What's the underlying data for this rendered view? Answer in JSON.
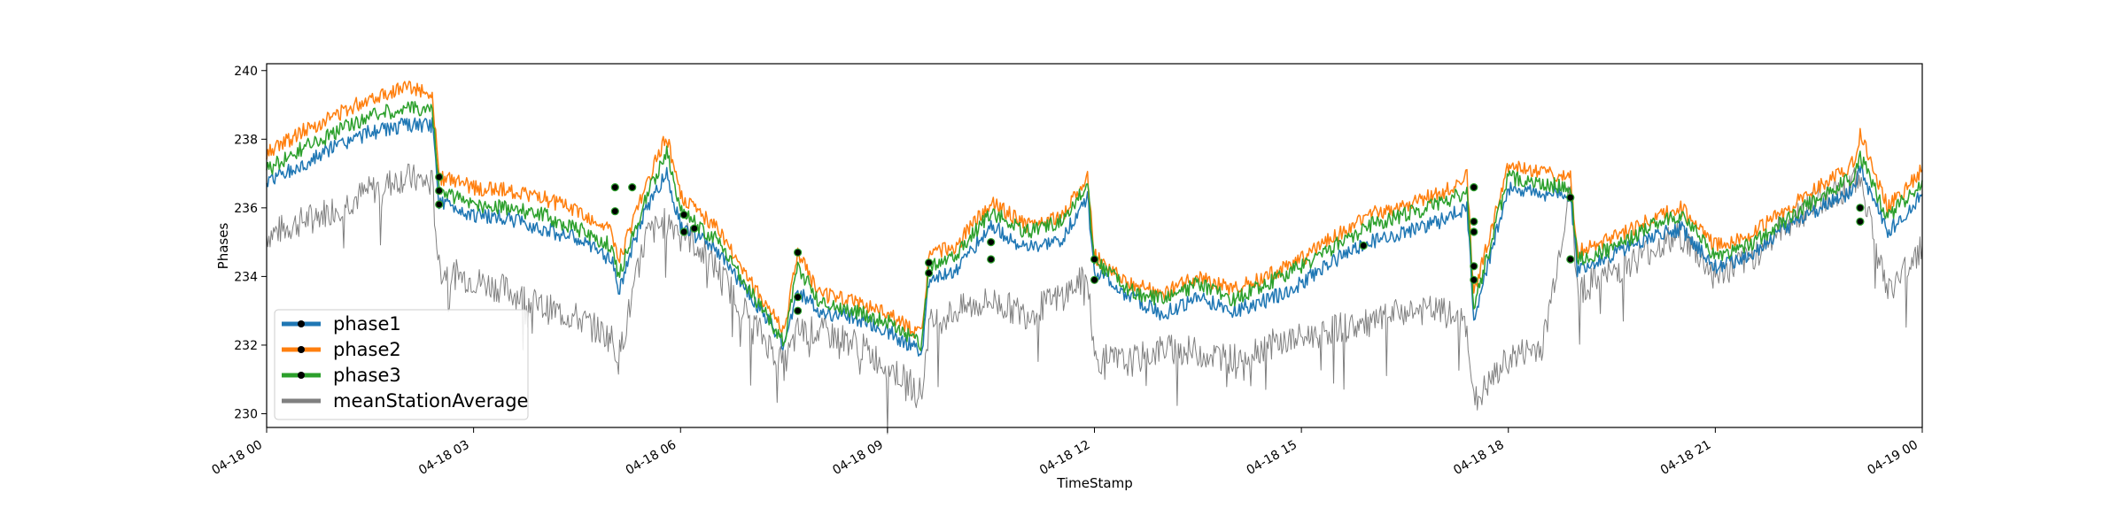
{
  "chart_data": {
    "type": "line",
    "title": "",
    "xlabel": "TimeStamp",
    "ylabel": "Phases",
    "xlim": [
      "04-18 00:00",
      "04-19 00:00"
    ],
    "ylim": [
      229.6,
      240.2
    ],
    "grid": false,
    "legend_position": "lower-left",
    "x_tick_labels": [
      "04-18 00",
      "04-18 03",
      "04-18 06",
      "04-18 09",
      "04-18 12",
      "04-18 15",
      "04-18 18",
      "04-18 21",
      "04-19 00"
    ],
    "y_tick_labels": [
      "230",
      "232",
      "234",
      "236",
      "238",
      "240"
    ],
    "series": [
      {
        "name": "phase1",
        "color": "#1f77b4",
        "x_hours": [
          0,
          0.5,
          1,
          1.5,
          2,
          2.4,
          2.5,
          3,
          3.5,
          4,
          4.5,
          5,
          5.1,
          5.5,
          5.8,
          6,
          6.5,
          7,
          7.5,
          7.7,
          8,
          8.5,
          9,
          9.5,
          9.6,
          10,
          10.5,
          11,
          11.5,
          11.9,
          12,
          12.5,
          13,
          13.5,
          14,
          14.5,
          15,
          15.5,
          16,
          16.5,
          17,
          17.4,
          17.5,
          18,
          18.5,
          18.9,
          19,
          19.5,
          20,
          20.5,
          21,
          21.5,
          22,
          22.5,
          23,
          23.1,
          23.5,
          24
        ],
        "y": [
          236.8,
          237.2,
          237.8,
          238.2,
          238.4,
          238.4,
          236.2,
          235.8,
          235.7,
          235.4,
          235.1,
          234.5,
          233.6,
          236.0,
          237.0,
          235.5,
          234.8,
          233.5,
          232.0,
          233.6,
          233.0,
          232.8,
          232.4,
          231.8,
          233.9,
          234.2,
          235.5,
          234.8,
          235.0,
          236.3,
          234.2,
          233.4,
          232.9,
          233.4,
          233.0,
          233.3,
          233.8,
          234.5,
          235.0,
          235.3,
          235.6,
          236.0,
          232.8,
          236.6,
          236.4,
          236.4,
          234.2,
          234.6,
          235.1,
          235.4,
          234.3,
          234.6,
          235.4,
          236.0,
          236.5,
          237.1,
          235.3,
          236.4
        ]
      },
      {
        "name": "phase2",
        "color": "#ff7f0e",
        "x_hours": [
          0,
          0.5,
          1,
          1.5,
          2,
          2.4,
          2.5,
          3,
          3.5,
          4,
          4.5,
          5,
          5.1,
          5.5,
          5.8,
          6,
          6.5,
          7,
          7.5,
          7.7,
          8,
          8.5,
          9,
          9.5,
          9.6,
          10,
          10.5,
          11,
          11.5,
          11.9,
          12,
          12.5,
          13,
          13.5,
          14,
          14.5,
          15,
          15.5,
          16,
          16.5,
          17,
          17.4,
          17.5,
          18,
          18.5,
          18.9,
          19,
          19.5,
          20,
          20.5,
          21,
          21.5,
          22,
          22.5,
          23,
          23.1,
          23.5,
          24
        ],
        "y": [
          237.6,
          238.2,
          238.7,
          239.2,
          239.5,
          239.4,
          236.9,
          236.6,
          236.5,
          236.3,
          235.9,
          235.3,
          234.4,
          236.7,
          238.1,
          236.3,
          235.5,
          233.9,
          232.4,
          234.7,
          233.5,
          233.3,
          232.9,
          232.3,
          234.6,
          234.9,
          236.2,
          235.5,
          235.7,
          236.9,
          234.6,
          233.8,
          233.5,
          234.0,
          233.6,
          234.0,
          234.5,
          235.2,
          235.8,
          236.1,
          236.4,
          236.9,
          233.5,
          237.2,
          237.0,
          236.9,
          234.7,
          235.1,
          235.6,
          236.0,
          234.9,
          235.2,
          235.9,
          236.6,
          237.3,
          238.2,
          236.0,
          237.1
        ]
      },
      {
        "name": "phase3",
        "color": "#2ca02c",
        "x_hours": [
          0,
          0.5,
          1,
          1.5,
          2,
          2.4,
          2.5,
          3,
          3.5,
          4,
          4.5,
          5,
          5.1,
          5.5,
          5.8,
          6,
          6.5,
          7,
          7.5,
          7.7,
          8,
          8.5,
          9,
          9.5,
          9.6,
          10,
          10.5,
          11,
          11.5,
          11.9,
          12,
          12.5,
          13,
          13.5,
          14,
          14.5,
          15,
          15.5,
          16,
          16.5,
          17,
          17.4,
          17.5,
          18,
          18.5,
          18.9,
          19,
          19.5,
          20,
          20.5,
          21,
          21.5,
          22,
          22.5,
          23,
          23.1,
          23.5,
          24
        ],
        "y": [
          237.1,
          237.7,
          238.2,
          238.7,
          238.9,
          238.9,
          236.5,
          236.1,
          236.0,
          235.8,
          235.4,
          234.9,
          234.0,
          236.3,
          237.6,
          235.9,
          235.1,
          233.6,
          232.1,
          234.3,
          233.3,
          233.0,
          232.7,
          232.0,
          234.3,
          234.6,
          235.9,
          235.3,
          235.6,
          236.7,
          234.5,
          233.6,
          233.3,
          233.8,
          233.3,
          233.8,
          234.3,
          234.9,
          235.5,
          235.8,
          236.1,
          236.5,
          233.1,
          236.9,
          236.7,
          236.6,
          234.5,
          234.8,
          235.4,
          235.8,
          234.6,
          234.9,
          235.6,
          236.3,
          236.9,
          237.5,
          235.7,
          236.8
        ]
      },
      {
        "name": "meanStationAverage",
        "color": "#808080",
        "x_hours": [
          0,
          0.5,
          1,
          1.5,
          2,
          2.4,
          2.5,
          3,
          3.5,
          4,
          4.5,
          5,
          5.1,
          5.5,
          5.8,
          6,
          6.5,
          7,
          7.5,
          7.7,
          8,
          8.5,
          9,
          9.5,
          9.6,
          10,
          10.5,
          11,
          11.5,
          11.9,
          12,
          12.5,
          13,
          13.5,
          14,
          14.5,
          15,
          15.5,
          16,
          16.5,
          17,
          17.4,
          17.5,
          18,
          18.5,
          18.9,
          19,
          19.5,
          20,
          20.5,
          21,
          21.5,
          22,
          22.5,
          23,
          23.1,
          23.5,
          24
        ],
        "y": [
          235.2,
          235.6,
          236.0,
          236.5,
          236.9,
          236.7,
          234.2,
          233.9,
          233.6,
          233.1,
          232.8,
          232.2,
          231.6,
          235.2,
          235.6,
          235.4,
          234.3,
          232.8,
          231.4,
          232.4,
          232.4,
          232.1,
          231.4,
          230.6,
          232.6,
          233.0,
          233.3,
          232.9,
          233.4,
          234.0,
          231.6,
          231.5,
          231.9,
          231.8,
          231.6,
          232.0,
          232.2,
          232.5,
          232.6,
          233.0,
          233.0,
          232.6,
          230.3,
          231.6,
          232.0,
          236.6,
          233.6,
          234.1,
          234.7,
          235.2,
          234.0,
          234.5,
          235.5,
          236.2,
          236.7,
          236.9,
          233.5,
          234.9
        ]
      }
    ],
    "markers": {
      "x_hours": [
        2.5,
        2.5,
        2.5,
        5.05,
        5.05,
        5.3,
        6.05,
        6.05,
        6.2,
        7.7,
        7.7,
        7.7,
        9.6,
        9.6,
        10.5,
        10.5,
        12.0,
        12.0,
        15.9,
        17.5,
        17.5,
        17.5,
        17.5,
        17.5,
        18.9,
        18.9,
        23.1,
        23.1
      ],
      "y": [
        236.9,
        236.5,
        236.1,
        236.6,
        235.9,
        236.6,
        235.8,
        235.3,
        235.4,
        234.7,
        233.4,
        233.0,
        234.4,
        234.1,
        235.0,
        234.5,
        234.5,
        233.9,
        234.9,
        236.6,
        235.6,
        235.3,
        234.3,
        233.9,
        236.3,
        234.5,
        236.0,
        235.6
      ]
    },
    "legend": {
      "entries": [
        "phase1",
        "phase2",
        "phase3",
        "meanStationAverage"
      ]
    }
  }
}
